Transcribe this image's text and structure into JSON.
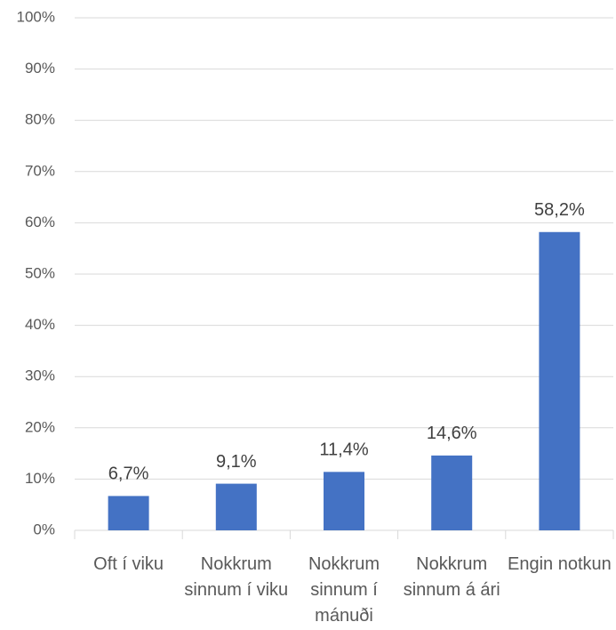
{
  "chart_data": {
    "type": "bar",
    "categories": [
      "Oft í viku",
      "Nokkrum sinnum í viku",
      "Nokkrum sinnum í mánuði",
      "Nokkrum sinnum á ári",
      "Engin notkun"
    ],
    "values": [
      6.7,
      9.1,
      11.4,
      14.6,
      58.2
    ],
    "value_labels": [
      "6,7%",
      "9,1%",
      "11,4%",
      "14,6%",
      "58,2%"
    ],
    "color": "#4472c4",
    "ylim": [
      0,
      100
    ],
    "yticks": [
      {
        "value": 0,
        "label": "0%"
      },
      {
        "value": 10,
        "label": "10%"
      },
      {
        "value": 20,
        "label": "20%"
      },
      {
        "value": 30,
        "label": "30%"
      },
      {
        "value": 40,
        "label": "40%"
      },
      {
        "value": 50,
        "label": "50%"
      },
      {
        "value": 60,
        "label": "60%"
      },
      {
        "value": 70,
        "label": "70%"
      },
      {
        "value": 80,
        "label": "80%"
      },
      {
        "value": 90,
        "label": "90%"
      },
      {
        "value": 100,
        "label": "100%"
      }
    ],
    "grid": true
  }
}
